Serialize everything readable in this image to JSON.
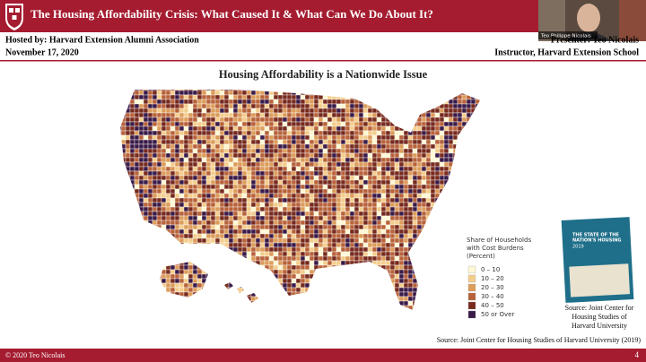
{
  "header": {
    "title": "The Housing Affordability Crisis: What Caused It & What Can We Do About It?",
    "hosted_by": "Hosted by: Harvard Extension Alumni Association",
    "date": "November 17, 2020",
    "presenter": "Presenter: Teo Nicolais",
    "role": "Instructor, Harvard Extension School"
  },
  "webcam": {
    "name": "Teo Philippe Nicolais"
  },
  "slide": {
    "title": "Housing Affordability is a Nationwide Issue",
    "legend": {
      "title": [
        "Share of Households",
        "with Cost Burdens",
        "(Percent)"
      ],
      "items": [
        {
          "label": "0 – 10",
          "color": "#fdf7d3"
        },
        {
          "label": "10 – 20",
          "color": "#f3cd8c"
        },
        {
          "label": "20 – 30",
          "color": "#dc9c5a"
        },
        {
          "label": "30 – 40",
          "color": "#b8623a"
        },
        {
          "label": "40 – 50",
          "color": "#772a1e"
        },
        {
          "label": "50 or Over",
          "color": "#3a1a48"
        }
      ]
    },
    "book": {
      "title": [
        "THE STATE OF THE",
        "NATION'S HOUSING"
      ],
      "year": "2019"
    },
    "book_caption": [
      "Source: Joint Center for",
      "Housing Studies of",
      "Harvard University"
    ],
    "source": "Source: Joint Center for Housing Studies of Harvard University (2019)"
  },
  "footer": {
    "copyright": "© 2020 Teo Nicolais",
    "page": "4"
  }
}
